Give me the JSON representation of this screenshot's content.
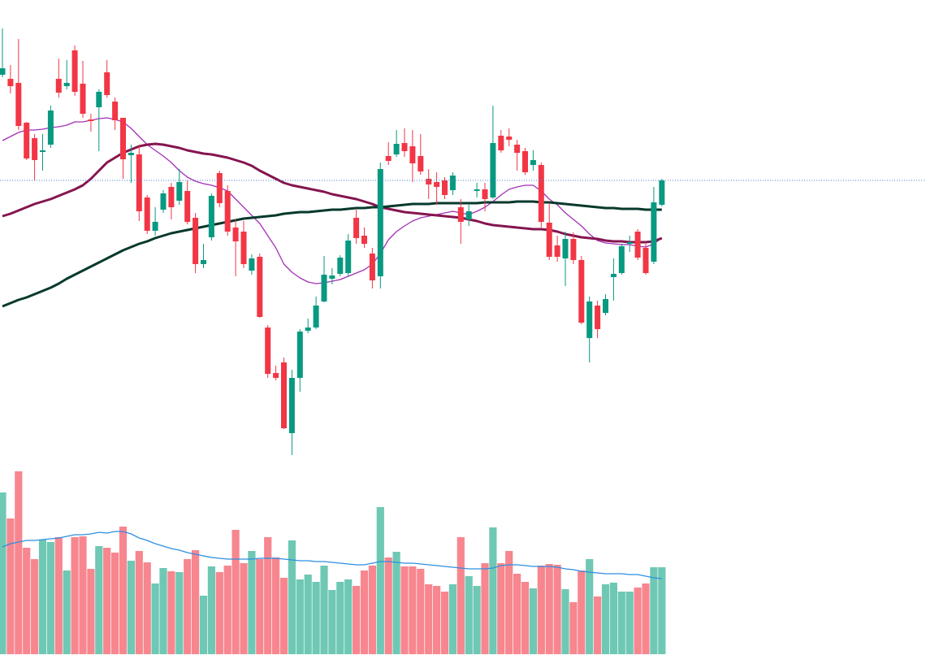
{
  "chart_data": {
    "type": "candlestick",
    "ylim": [
      0,
      600
    ],
    "y2lim": [
      0,
      805
    ],
    "up_color": "#089981",
    "down_color": "#f23645",
    "volume_up_color": "#6ec8b4",
    "volume_down_color": "#f7868f",
    "last_price_line_color": "#4a7fd0",
    "open": [
      508,
      503,
      498,
      449,
      430,
      413,
      422,
      503,
      494,
      538,
      497,
      453,
      468,
      511,
      475,
      455,
      409,
      410,
      357,
      316,
      342,
      370,
      353,
      365,
      332,
      275,
      308,
      387,
      365,
      320,
      315,
      267,
      284,
      197,
      141,
      154,
      67,
      135,
      193,
      197,
      229,
      257,
      263,
      264,
      332,
      310,
      288,
      260,
      408,
      410,
      424,
      420,
      408,
      380,
      376,
      378,
      366,
      345,
      330,
      365,
      367,
      357,
      433,
      432,
      422,
      414,
      397,
      397,
      326,
      298,
      282,
      306,
      280,
      184,
      224,
      215,
      259,
      264,
      300,
      315,
      295,
      278,
      348
    ],
    "high": [
      565,
      520,
      552,
      450,
      435,
      435,
      470,
      528,
      526,
      544,
      525,
      460,
      490,
      526,
      480,
      455,
      422,
      422,
      360,
      345,
      366,
      375,
      392,
      378,
      338,
      300,
      362,
      390,
      372,
      330,
      328,
      287,
      288,
      200,
      150,
      160,
      145,
      195,
      208,
      235,
      285,
      270,
      286,
      312,
      342,
      320,
      295,
      400,
      425,
      440,
      442,
      440,
      435,
      392,
      388,
      382,
      388,
      355,
      348,
      375,
      375,
      470,
      440,
      442,
      428,
      418,
      415,
      400,
      350,
      310,
      315,
      314,
      285,
      235,
      230,
      238,
      282,
      300,
      310,
      318,
      300,
      370,
      380
    ],
    "low": [
      505,
      485,
      440,
      403,
      378,
      390,
      418,
      480,
      490,
      482,
      455,
      438,
      414,
      480,
      440,
      380,
      375,
      328,
      312,
      310,
      338,
      330,
      348,
      324,
      264,
      270,
      304,
      345,
      310,
      260,
      270,
      262,
      209,
      135,
      132,
      72,
      40,
      118,
      190,
      195,
      228,
      250,
      260,
      260,
      300,
      295,
      245,
      245,
      397,
      407,
      407,
      376,
      385,
      355,
      348,
      355,
      360,
      300,
      322,
      357,
      340,
      355,
      412,
      420,
      390,
      385,
      390,
      320,
      280,
      278,
      248,
      275,
      201,
      154,
      184,
      212,
      230,
      262,
      290,
      280,
      262,
      275,
      346
    ],
    "close": [
      516,
      494,
      445,
      405,
      403,
      415,
      464,
      486,
      498,
      487,
      460,
      451,
      487,
      483,
      452,
      404,
      412,
      340,
      316,
      327,
      362,
      345,
      376,
      327,
      275,
      280,
      359,
      350,
      315,
      303,
      275,
      282,
      210,
      140,
      135,
      73,
      135,
      192,
      197,
      224,
      262,
      261,
      283,
      304,
      307,
      300,
      255,
      392,
      402,
      423,
      414,
      399,
      389,
      373,
      370,
      360,
      384,
      327,
      340,
      367,
      355,
      424,
      415,
      428,
      412,
      388,
      403,
      327,
      284,
      284,
      306,
      280,
      203,
      229,
      195,
      232,
      263,
      297,
      302,
      283,
      264,
      351,
      378
    ],
    "volume": [
      199,
      167,
      225,
      131,
      117,
      141,
      138,
      144,
      103,
      144,
      145,
      105,
      133,
      131,
      125,
      157,
      115,
      127,
      113,
      87,
      106,
      102,
      101,
      117,
      128,
      72,
      108,
      101,
      109,
      153,
      112,
      127,
      117,
      144,
      119,
      94,
      140,
      92,
      98,
      89,
      109,
      79,
      89,
      92,
      84,
      103,
      109,
      181,
      119,
      126,
      108,
      108,
      105,
      86,
      84,
      77,
      86,
      144,
      96,
      84,
      112,
      156,
      112,
      127,
      99,
      89,
      81,
      109,
      111,
      110,
      80,
      64,
      103,
      117,
      71,
      86,
      88,
      77,
      77,
      82,
      87,
      107,
      107
    ],
    "lines": [
      {
        "color": "#a52fb8",
        "width": 1.3,
        "values": [
          427,
          432,
          437,
          440,
          440,
          441,
          443,
          444,
          446,
          450,
          450,
          452,
          454,
          455,
          453,
          450,
          442,
          432,
          422,
          415,
          408,
          400,
          390,
          382,
          377,
          374,
          372,
          369,
          365,
          355,
          345,
          335,
          325,
          310,
          295,
          275,
          265,
          258,
          253,
          251,
          252,
          254,
          256,
          260,
          264,
          268,
          275,
          288,
          305,
          315,
          322,
          328,
          332,
          334,
          336,
          338,
          340,
          338,
          336,
          340,
          345,
          352,
          360,
          367,
          370,
          372,
          372,
          365,
          355,
          348,
          338,
          330,
          322,
          312,
          304,
          301,
          300,
          299,
          299,
          297,
          296,
          300,
          307
        ]
      },
      {
        "color": "#85154f",
        "width": 3,
        "values": [
          334,
          337,
          341,
          345,
          349,
          352,
          355,
          359,
          363,
          367,
          372,
          380,
          390,
          400,
          406,
          412,
          416,
          420,
          422,
          423,
          422,
          420,
          418,
          415,
          413,
          411,
          410,
          408,
          406,
          403,
          400,
          396,
          390,
          385,
          380,
          375,
          372,
          370,
          368,
          366,
          364,
          361,
          359,
          357,
          355,
          352,
          349,
          345,
          343,
          341,
          339,
          338,
          337,
          336,
          335,
          334,
          333,
          332,
          330,
          328,
          325,
          323,
          322,
          321,
          320,
          319,
          318,
          318,
          317,
          315,
          312,
          310,
          308,
          307,
          306,
          304,
          303,
          303,
          302,
          302,
          302,
          303,
          307
        ]
      },
      {
        "color": "#06392c",
        "width": 3,
        "values": [
          223,
          227,
          231,
          234,
          238,
          242,
          246,
          251,
          257,
          262,
          267,
          272,
          277,
          282,
          287,
          292,
          296,
          300,
          303,
          307,
          310,
          313,
          315,
          317,
          319,
          321,
          323,
          325,
          327,
          329,
          331,
          332,
          333,
          334,
          335,
          337,
          338,
          339,
          339,
          340,
          341,
          342,
          342,
          343,
          344,
          344,
          345,
          345,
          346,
          347,
          348,
          349,
          349,
          349,
          350,
          350,
          350,
          350,
          350,
          350,
          351,
          351,
          351,
          351,
          352,
          352,
          352,
          351,
          351,
          350,
          349,
          348,
          347,
          346,
          345,
          344,
          344,
          343,
          343,
          343,
          342,
          342,
          342
        ]
      }
    ],
    "volume_line": {
      "color": "#2e8fe0",
      "width": 1.3,
      "values": [
        132,
        136,
        138,
        140,
        140,
        141,
        142,
        143,
        145,
        147,
        147,
        148,
        150,
        149,
        151,
        151,
        148,
        143,
        140,
        136,
        133,
        130,
        128,
        125,
        123,
        121,
        119,
        118,
        117,
        117,
        117,
        117,
        118,
        118,
        118,
        117,
        116,
        115,
        115,
        114,
        114,
        113,
        112,
        111,
        110,
        110,
        112,
        114,
        114,
        113,
        112,
        112,
        111,
        110,
        109,
        108,
        107,
        106,
        105,
        105,
        105,
        106,
        109,
        110,
        110,
        109,
        108,
        108,
        108,
        107,
        105,
        104,
        102,
        101,
        100,
        99,
        99,
        99,
        98,
        98,
        96,
        94,
        93
      ]
    }
  }
}
